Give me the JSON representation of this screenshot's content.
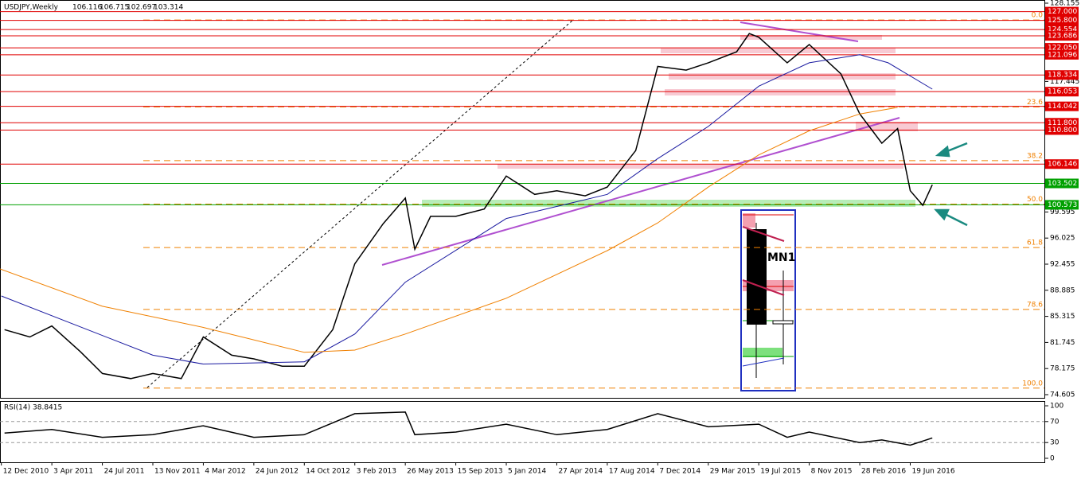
{
  "chart_data": [
    {
      "type": "line",
      "header": "USDJPY,Weekly",
      "ohlc": [
        106.116,
        106.715,
        102.697,
        103.314
      ],
      "annotation": "MN1",
      "xlim": [
        "2010-12-09",
        "2017-04-09"
      ],
      "xticks": [
        {
          "value": "2010-12-12",
          "label": "12 Dec 2010"
        },
        {
          "value": "2011-04-03",
          "label": "3 Apr 2011"
        },
        {
          "value": "2011-07-24",
          "label": "24 Jul 2011"
        },
        {
          "value": "2011-11-13",
          "label": "13 Nov 2011"
        },
        {
          "value": "2012-03-04",
          "label": "4 Mar 2012"
        },
        {
          "value": "2012-06-24",
          "label": "24 Jun 2012"
        },
        {
          "value": "2012-10-14",
          "label": "14 Oct 2012"
        },
        {
          "value": "2013-02-03",
          "label": "3 Feb 2013"
        },
        {
          "value": "2013-05-26",
          "label": "26 May 2013"
        },
        {
          "value": "2013-09-15",
          "label": "15 Sep 2013"
        },
        {
          "value": "2014-01-05",
          "label": "5 Jan 2014"
        },
        {
          "value": "2014-04-27",
          "label": "27 Apr 2014"
        },
        {
          "value": "2014-08-17",
          "label": "17 Aug 2014"
        },
        {
          "value": "2014-12-07",
          "label": "7 Dec 2014"
        },
        {
          "value": "2015-03-29",
          "label": "29 Mar 2015"
        },
        {
          "value": "2015-07-19",
          "label": "19 Jul 2015"
        },
        {
          "value": "2015-11-08",
          "label": "8 Nov 2015"
        },
        {
          "value": "2016-02-28",
          "label": "28 Feb 2016"
        },
        {
          "value": "2016-06-19",
          "label": "19 Jun 2016"
        }
      ],
      "ylim": [
        74.17,
        128.59
      ],
      "yticks": [
        128.155,
        117.445,
        99.595,
        96.025,
        92.455,
        88.885,
        85.315,
        81.745,
        78.175,
        74.605
      ],
      "level_groups": [
        {
          "color": "#e00000",
          "values": [
            {
              "value": 127,
              "label": "127.000"
            },
            {
              "value": 125.8,
              "label": "125.800"
            },
            124.554,
            123.686,
            {
              "value": 122.05,
              "label": "122.050"
            },
            121.096,
            118.334,
            116.053,
            114.042,
            {
              "value": 111.8,
              "label": "111.800"
            },
            {
              "value": 110.8,
              "label": "110.800"
            },
            106.146
          ]
        },
        {
          "color": "#00a000",
          "values": [
            103.502,
            100.573
          ]
        }
      ],
      "fib": {
        "color": "#f08000",
        "ratios": [
          {
            "value": 0,
            "label": "0.0"
          },
          23.6,
          38.2,
          {
            "value": 50,
            "label": "50.0"
          },
          61.8,
          78.6,
          {
            "value": 100,
            "label": "100.0"
          }
        ],
        "prices": [
          125.85,
          113.97,
          106.62,
          100.67,
          94.73,
          86.27,
          75.5
        ]
      },
      "series": [
        {
          "color": "#000000",
          "x": [
            "2010-12-19",
            "2011-02-13",
            "2011-04-03",
            "2011-06-05",
            "2011-07-24",
            "2011-09-25",
            "2011-11-13",
            "2012-01-15",
            "2012-03-04",
            "2012-05-06",
            "2012-06-24",
            "2012-08-26",
            "2012-10-14",
            "2012-12-16",
            "2013-02-03",
            "2013-04-07",
            "2013-05-26",
            "2013-06-16",
            "2013-07-21",
            "2013-09-15",
            "2013-11-17",
            "2014-01-05",
            "2014-03-09",
            "2014-04-27",
            "2014-06-29",
            "2014-08-17",
            "2014-10-19",
            "2014-12-07",
            "2015-02-08",
            "2015-03-29",
            "2015-05-31",
            "2015-06-28",
            "2015-07-19",
            "2015-09-20",
            "2015-11-08",
            "2016-01-17",
            "2016-02-28",
            "2016-04-17",
            "2016-05-22",
            "2016-06-19",
            "2016-07-17",
            "2016-08-07"
          ],
          "values": [
            83.5,
            82.5,
            84.0,
            80.5,
            77.5,
            76.8,
            77.5,
            76.8,
            82.5,
            80.0,
            79.5,
            78.5,
            78.5,
            83.5,
            92.5,
            98.0,
            101.5,
            94.5,
            99.0,
            99.0,
            100.0,
            104.5,
            102.0,
            102.5,
            101.8,
            103.0,
            108.0,
            119.5,
            119.0,
            120.0,
            121.5,
            124.0,
            123.5,
            120.0,
            122.5,
            118.5,
            113.0,
            109.0,
            111.0,
            102.5,
            100.5,
            103.314
          ]
        },
        {
          "color": "#1a1aa0",
          "x": [
            "2010-12-12",
            "2011-11-13",
            "2012-03-04",
            "2012-10-14",
            "2013-02-03",
            "2013-05-26",
            "2014-01-05",
            "2014-08-17",
            "2014-12-07",
            "2015-03-29",
            "2015-07-19",
            "2015-11-08",
            "2016-02-28",
            "2016-05-01",
            "2016-08-07"
          ],
          "values": [
            88.1,
            80.0,
            78.8,
            79.1,
            82.9,
            90.0,
            98.7,
            102.0,
            106.9,
            111.3,
            116.8,
            120.0,
            121.1,
            120.0,
            116.4
          ]
        },
        {
          "color": "#f08000",
          "x": [
            "2010-12-09",
            "2011-07-24",
            "2012-03-04",
            "2012-10-14",
            "2013-02-03",
            "2013-05-26",
            "2014-01-05",
            "2014-08-17",
            "2014-12-07",
            "2015-03-29",
            "2015-07-19",
            "2015-11-08",
            "2016-02-28",
            "2016-05-22"
          ],
          "values": [
            91.8,
            86.7,
            83.8,
            80.4,
            80.7,
            82.9,
            87.8,
            94.3,
            98.1,
            103.0,
            107.4,
            110.7,
            113.0,
            113.9
          ]
        }
      ]
    },
    {
      "type": "line",
      "title": "RSI(14)",
      "last": 38.8415,
      "xlim": [
        "2010-12-09",
        "2017-04-09"
      ],
      "ylim": [
        -7.6,
        107.6
      ],
      "yticks": [
        100,
        70,
        30,
        0
      ],
      "series": [
        {
          "color": "#000000",
          "x": [
            "2010-12-19",
            "2011-04-03",
            "2011-07-24",
            "2011-11-13",
            "2012-03-04",
            "2012-06-24",
            "2012-10-14",
            "2013-02-03",
            "2013-05-26",
            "2013-06-16",
            "2013-09-15",
            "2014-01-05",
            "2014-04-27",
            "2014-08-17",
            "2014-12-07",
            "2015-03-29",
            "2015-07-19",
            "2015-09-20",
            "2015-11-08",
            "2016-02-28",
            "2016-04-17",
            "2016-06-19",
            "2016-08-07"
          ],
          "values": [
            48,
            55,
            40,
            45,
            62,
            40,
            45,
            85,
            88,
            45,
            50,
            65,
            45,
            55,
            85,
            60,
            65,
            40,
            50,
            30,
            35,
            25,
            38.8415
          ]
        }
      ]
    }
  ]
}
